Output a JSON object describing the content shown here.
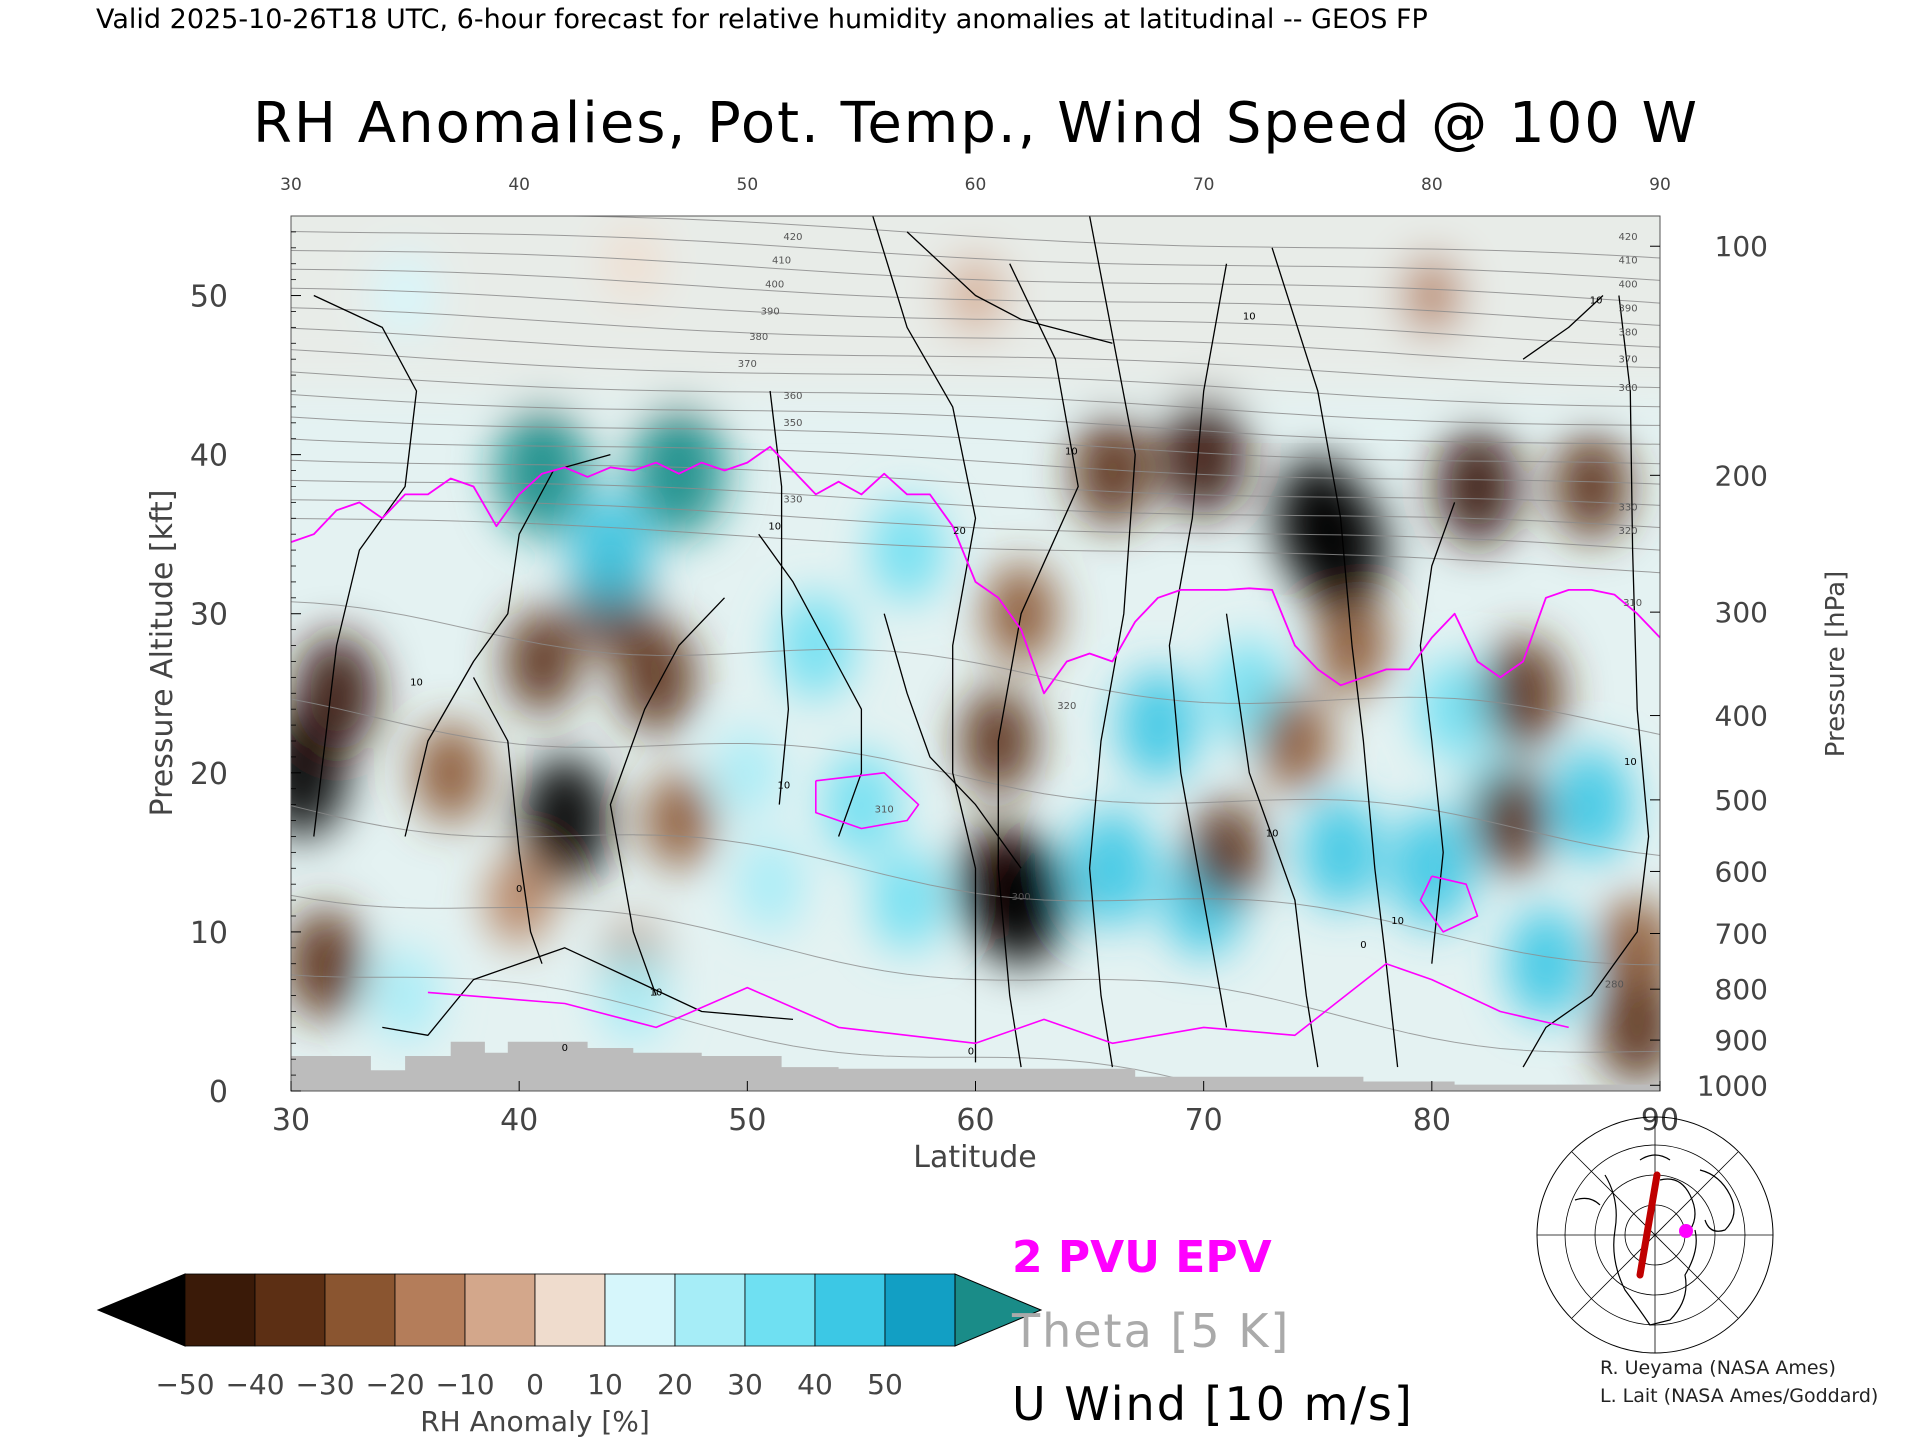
{
  "header": {
    "valid_line": "Valid 2025-10-26T18 UTC, 6-hour forecast for relative humidity anomalies at latitudinal -- GEOS FP",
    "title": "RH Anomalies, Pot. Temp., Wind Speed @ 100 W"
  },
  "legend_lines": {
    "epv": "2 PVU EPV",
    "theta": "Theta [5 K]",
    "uwind": "U Wind [10 m/s]",
    "epv_color": "#ff00ff",
    "theta_color": "#aaaaaa",
    "uwind_color": "#000000"
  },
  "credits": {
    "line1": "R. Ueyama (NASA Ames)",
    "line2": "L. Lait (NASA Ames/Goddard)"
  },
  "colorbar": {
    "label": "RH Anomaly [%]",
    "ticks": [
      "−50",
      "−40",
      "−30",
      "−20",
      "−10",
      "0",
      "10",
      "20",
      "30",
      "40",
      "50"
    ],
    "colors": [
      "#3a1a08",
      "#5c2f14",
      "#8a5530",
      "#b47d5a",
      "#d3a78b",
      "#efdccd",
      "#d6f6fb",
      "#a6edf7",
      "#6fe0f2",
      "#3cc8e5",
      "#129fc4"
    ],
    "under_color": "#000000",
    "over_color": "#1a8c88"
  },
  "chart_data": {
    "type": "heatmap",
    "title": "RH Anomalies, Pot. Temp., Wind Speed @ 100 W",
    "xlabel": "Latitude",
    "ylabel_left": "Pressure Altitude [kft]",
    "ylabel_right": "Pressure [hPa]",
    "xlim": [
      30,
      90
    ],
    "ylim": [
      0,
      55
    ],
    "x_ticks": [
      30,
      40,
      50,
      60,
      70,
      80,
      90
    ],
    "y_ticks": [
      0,
      10,
      20,
      30,
      40,
      50
    ],
    "pressure_ticks": [
      {
        "hpa": 100,
        "kft": 53.1
      },
      {
        "hpa": 200,
        "kft": 38.7
      },
      {
        "hpa": 300,
        "kft": 30.1
      },
      {
        "hpa": 400,
        "kft": 23.6
      },
      {
        "hpa": 500,
        "kft": 18.3
      },
      {
        "hpa": 600,
        "kft": 13.8
      },
      {
        "hpa": 700,
        "kft": 9.9
      },
      {
        "hpa": 800,
        "kft": 6.4
      },
      {
        "hpa": 900,
        "kft": 3.2
      },
      {
        "hpa": 1000,
        "kft": 0.36
      }
    ],
    "rh_anomaly_features": [
      {
        "lat": 30.5,
        "kft": 20,
        "value": -55
      },
      {
        "lat": 32,
        "kft": 25,
        "value": -45
      },
      {
        "lat": 31.5,
        "kft": 8,
        "value": -38
      },
      {
        "lat": 37,
        "kft": 20,
        "value": -30
      },
      {
        "lat": 42,
        "kft": 17,
        "value": -55
      },
      {
        "lat": 41,
        "kft": 27,
        "value": -32
      },
      {
        "lat": 44,
        "kft": 31,
        "value": -40
      },
      {
        "lat": 46,
        "kft": 26,
        "value": -38
      },
      {
        "lat": 40,
        "kft": 12,
        "value": -20
      },
      {
        "lat": 45,
        "kft": 8,
        "value": -15
      },
      {
        "lat": 47,
        "kft": 17,
        "value": -25
      },
      {
        "lat": 45,
        "kft": 6,
        "value": 25
      },
      {
        "lat": 35,
        "kft": 6,
        "value": 25
      },
      {
        "lat": 41,
        "kft": 39,
        "value": 58
      },
      {
        "lat": 47,
        "kft": 39,
        "value": 60
      },
      {
        "lat": 44,
        "kft": 34,
        "value": 40
      },
      {
        "lat": 53,
        "kft": 28,
        "value": 35
      },
      {
        "lat": 55,
        "kft": 18,
        "value": 35
      },
      {
        "lat": 57,
        "kft": 34,
        "value": 32
      },
      {
        "lat": 50,
        "kft": 20,
        "value": 20
      },
      {
        "lat": 51,
        "kft": 13,
        "value": 25
      },
      {
        "lat": 57,
        "kft": 12,
        "value": 30
      },
      {
        "lat": 61,
        "kft": 13,
        "value": -48
      },
      {
        "lat": 62,
        "kft": 12,
        "value": -58
      },
      {
        "lat": 61,
        "kft": 22,
        "value": -35
      },
      {
        "lat": 62,
        "kft": 30,
        "value": -30
      },
      {
        "lat": 66,
        "kft": 14,
        "value": 45
      },
      {
        "lat": 68,
        "kft": 23,
        "value": 40
      },
      {
        "lat": 70,
        "kft": 12,
        "value": 40
      },
      {
        "lat": 72,
        "kft": 25,
        "value": 35
      },
      {
        "lat": 71,
        "kft": 15,
        "value": -32
      },
      {
        "lat": 74,
        "kft": 22,
        "value": -30
      },
      {
        "lat": 76.5,
        "kft": 28,
        "value": -28
      },
      {
        "lat": 76,
        "kft": 15,
        "value": 40
      },
      {
        "lat": 80,
        "kft": 14,
        "value": 45
      },
      {
        "lat": 81,
        "kft": 24,
        "value": 30
      },
      {
        "lat": 83,
        "kft": 18,
        "value": 30
      },
      {
        "lat": 84,
        "kft": 25,
        "value": -40
      },
      {
        "lat": 83.5,
        "kft": 17,
        "value": -35
      },
      {
        "lat": 87,
        "kft": 18,
        "value": 40
      },
      {
        "lat": 85,
        "kft": 8,
        "value": 40
      },
      {
        "lat": 89,
        "kft": 9,
        "value": -30
      },
      {
        "lat": 89,
        "kft": 4,
        "value": -40
      },
      {
        "lat": 66,
        "kft": 39,
        "value": -40
      },
      {
        "lat": 70,
        "kft": 40,
        "value": -50
      },
      {
        "lat": 75,
        "kft": 36,
        "value": -52
      },
      {
        "lat": 76,
        "kft": 34,
        "value": -58
      },
      {
        "lat": 82,
        "kft": 38,
        "value": -45
      },
      {
        "lat": 87,
        "kft": 38,
        "value": -35
      },
      {
        "lat": 60,
        "kft": 50,
        "value": -10
      },
      {
        "lat": 80,
        "kft": 50,
        "value": -12
      },
      {
        "lat": 35,
        "kft": 50,
        "value": 18
      },
      {
        "lat": 45,
        "kft": 52,
        "value": 8
      }
    ],
    "theta_labels": [
      {
        "lat": 52,
        "kft": 53.5,
        "text": "420"
      },
      {
        "lat": 51.5,
        "kft": 52,
        "text": "410"
      },
      {
        "lat": 51.2,
        "kft": 50.5,
        "text": "400"
      },
      {
        "lat": 51,
        "kft": 48.8,
        "text": "390"
      },
      {
        "lat": 50.5,
        "kft": 47.2,
        "text": "380"
      },
      {
        "lat": 50,
        "kft": 45.5,
        "text": "370"
      },
      {
        "lat": 52,
        "kft": 43.5,
        "text": "360"
      },
      {
        "lat": 52,
        "kft": 41.8,
        "text": "350"
      },
      {
        "lat": 52,
        "kft": 37,
        "text": "330"
      },
      {
        "lat": 64,
        "kft": 24,
        "text": "320"
      },
      {
        "lat": 56,
        "kft": 17.5,
        "text": "310"
      },
      {
        "lat": 62,
        "kft": 12,
        "text": "300"
      },
      {
        "lat": 88,
        "kft": 6.5,
        "text": "280"
      },
      {
        "lat": 88.6,
        "kft": 53.5,
        "text": "420"
      },
      {
        "lat": 88.6,
        "kft": 52,
        "text": "410"
      },
      {
        "lat": 88.6,
        "kft": 50.5,
        "text": "400"
      },
      {
        "lat": 88.6,
        "kft": 49,
        "text": "390"
      },
      {
        "lat": 88.6,
        "kft": 47.5,
        "text": "380"
      },
      {
        "lat": 88.6,
        "kft": 45.8,
        "text": "370"
      },
      {
        "lat": 88.6,
        "kft": 44,
        "text": "360"
      },
      {
        "lat": 88.6,
        "kft": 36.5,
        "text": "330"
      },
      {
        "lat": 88.6,
        "kft": 35,
        "text": "320"
      },
      {
        "lat": 88.8,
        "kft": 30.5,
        "text": "310"
      }
    ],
    "wind_labels": [
      {
        "lat": 46.5,
        "kft": 55,
        "text": "10"
      },
      {
        "lat": 87.2,
        "kft": 49.5,
        "text": "10"
      },
      {
        "lat": 72,
        "kft": 48.5,
        "text": "10"
      },
      {
        "lat": 35.5,
        "kft": 25.5,
        "text": "10"
      },
      {
        "lat": 40,
        "kft": 12.5,
        "text": "0"
      },
      {
        "lat": 51.2,
        "kft": 35.3,
        "text": "10"
      },
      {
        "lat": 51.6,
        "kft": 19,
        "text": "10"
      },
      {
        "lat": 59.3,
        "kft": 35,
        "text": "20"
      },
      {
        "lat": 64.2,
        "kft": 40,
        "text": "10"
      },
      {
        "lat": 73,
        "kft": 16,
        "text": "10"
      },
      {
        "lat": 78.5,
        "kft": 10.5,
        "text": "10"
      },
      {
        "lat": 46,
        "kft": 6,
        "text": "10"
      },
      {
        "lat": 42,
        "kft": 2.5,
        "text": "0"
      },
      {
        "lat": 59.8,
        "kft": 2.3,
        "text": "0"
      },
      {
        "lat": 88.7,
        "kft": 20.5,
        "text": "10"
      },
      {
        "lat": 77,
        "kft": 9,
        "text": "0"
      }
    ],
    "epv_2pvu_polyline": [
      [
        30,
        34.5
      ],
      [
        31,
        35
      ],
      [
        32,
        36.5
      ],
      [
        33,
        37
      ],
      [
        34,
        36
      ],
      [
        35,
        37.5
      ],
      [
        36,
        37.5
      ],
      [
        37,
        38.5
      ],
      [
        38,
        38
      ],
      [
        39,
        35.5
      ],
      [
        40,
        37.5
      ],
      [
        41,
        38.8
      ],
      [
        42,
        39.2
      ],
      [
        43,
        38.6
      ],
      [
        44,
        39.2
      ],
      [
        45,
        39
      ],
      [
        46,
        39.5
      ],
      [
        47,
        38.8
      ],
      [
        48,
        39.5
      ],
      [
        49,
        39
      ],
      [
        50,
        39.5
      ],
      [
        51,
        40.5
      ],
      [
        52,
        39
      ],
      [
        53,
        37.5
      ],
      [
        54,
        38.3
      ],
      [
        55,
        37.5
      ],
      [
        56,
        38.8
      ],
      [
        57,
        37.5
      ],
      [
        58,
        37.5
      ],
      [
        59,
        35.5
      ],
      [
        60,
        32
      ],
      [
        61,
        31
      ],
      [
        62,
        29
      ],
      [
        63,
        25
      ],
      [
        64,
        27
      ],
      [
        65,
        27.5
      ],
      [
        66,
        27
      ],
      [
        67,
        29.5
      ],
      [
        68,
        31
      ],
      [
        69,
        31.5
      ],
      [
        70,
        31.5
      ],
      [
        71,
        31.5
      ],
      [
        72,
        31.6
      ],
      [
        73,
        31.5
      ],
      [
        74,
        28
      ],
      [
        75,
        26.5
      ],
      [
        76,
        25.5
      ],
      [
        77,
        26
      ],
      [
        78,
        26.5
      ],
      [
        79,
        26.5
      ],
      [
        80,
        28.5
      ],
      [
        81,
        30
      ],
      [
        82,
        27
      ],
      [
        83,
        26
      ],
      [
        84,
        27
      ],
      [
        85,
        31
      ],
      [
        86,
        31.5
      ],
      [
        87,
        31.5
      ],
      [
        88,
        31.2
      ],
      [
        89,
        30
      ],
      [
        90,
        28.5
      ]
    ],
    "terrain_kft_by_lat": [
      [
        30,
        2.2
      ],
      [
        33.5,
        2.2
      ],
      [
        33.5,
        1.3
      ],
      [
        35,
        1.3
      ],
      [
        35,
        2.2
      ],
      [
        37,
        2.2
      ],
      [
        37,
        3.1
      ],
      [
        38.5,
        3.1
      ],
      [
        38.5,
        2.4
      ],
      [
        39.5,
        2.4
      ],
      [
        39.5,
        3.1
      ],
      [
        43,
        3.1
      ],
      [
        43,
        2.7
      ],
      [
        45,
        2.7
      ],
      [
        45,
        2.4
      ],
      [
        48,
        2.4
      ],
      [
        48,
        2.2
      ],
      [
        51.5,
        2.2
      ],
      [
        51.5,
        1.5
      ],
      [
        54,
        1.5
      ],
      [
        54,
        1.4
      ],
      [
        67,
        1.4
      ],
      [
        67,
        0.9
      ],
      [
        77,
        0.9
      ],
      [
        77,
        0.6
      ],
      [
        81,
        0.6
      ],
      [
        81,
        0.4
      ],
      [
        90,
        0.4
      ]
    ]
  }
}
